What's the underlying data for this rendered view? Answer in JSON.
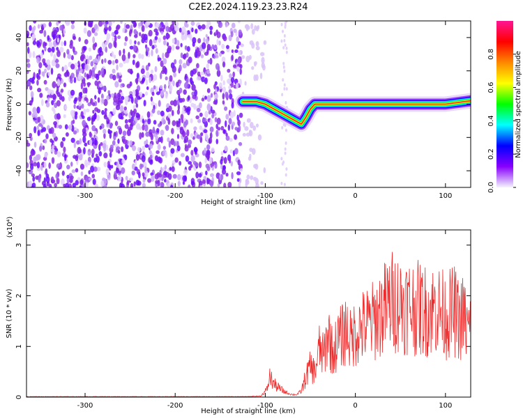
{
  "title": "C2E2.2024.119.23.23.R24",
  "colorbar": {
    "label": "Normalized spectral amplitude",
    "ticks": [
      "0.0",
      "0.2",
      "0.4",
      "0.6",
      "0.8"
    ],
    "tick_values": [
      0.0,
      0.2,
      0.4,
      0.6,
      0.8
    ],
    "range": [
      0,
      1
    ],
    "colors": [
      "#f4f4ff",
      "#8800ff",
      "#0000ff",
      "#00ffff",
      "#00ff00",
      "#ffff00",
      "#ff8800",
      "#ff0000",
      "#ff1493"
    ]
  },
  "chart_data": [
    {
      "type": "heatmap",
      "xlabel": "Height of straight line (km)",
      "ylabel": "Frequency (Hz)",
      "xlim": [
        -365,
        128
      ],
      "ylim": [
        -50,
        50
      ],
      "xticks": [
        "-300",
        "-200",
        "-100",
        "0",
        "100"
      ],
      "xtick_values": [
        -300,
        -200,
        -100,
        0,
        100
      ],
      "yticks": [
        "-40",
        "-20",
        "0",
        "20",
        "40"
      ],
      "ytick_values": [
        -40,
        -20,
        0,
        20,
        40
      ],
      "noise_region_x": [
        -365,
        -100
      ],
      "signal_ridge": [
        {
          "x": -125,
          "y": 1.5
        },
        {
          "x": -110,
          "y": 1.5
        },
        {
          "x": -100,
          "y": 0
        },
        {
          "x": -90,
          "y": -3
        },
        {
          "x": -80,
          "y": -6
        },
        {
          "x": -70,
          "y": -9
        },
        {
          "x": -60,
          "y": -12
        },
        {
          "x": -55,
          "y": -8
        },
        {
          "x": -50,
          "y": -3
        },
        {
          "x": -45,
          "y": 0
        },
        {
          "x": -30,
          "y": 0
        },
        {
          "x": 0,
          "y": 0
        },
        {
          "x": 50,
          "y": 0
        },
        {
          "x": 100,
          "y": 0
        },
        {
          "x": 128,
          "y": 2
        }
      ]
    },
    {
      "type": "line",
      "xlabel": "Height of straight line (km)",
      "ylabel": "SNR (10 * v/v)",
      "y_multiplier": "(x10⁴)",
      "xlim": [
        -365,
        128
      ],
      "ylim": [
        0,
        3.3
      ],
      "xticks": [
        "-300",
        "-200",
        "-100",
        "0",
        "100"
      ],
      "xtick_values": [
        -300,
        -200,
        -100,
        0,
        100
      ],
      "yticks": [
        "0",
        "1",
        "2",
        "3"
      ],
      "ytick_values": [
        0,
        1,
        2,
        3
      ],
      "color": "#ee2a2a",
      "series": [
        {
          "x": [
            -365,
            -300,
            -200,
            -120,
            -105,
            -98,
            -95,
            -90,
            -85,
            -80,
            -75,
            -70,
            -65,
            -60,
            -55,
            -50,
            -45,
            -40,
            -35,
            -30,
            -25,
            -20,
            -15,
            -10,
            -5,
            0,
            10,
            20,
            30,
            40,
            50,
            60,
            70,
            80,
            90,
            100,
            110,
            115,
            120,
            125,
            128
          ],
          "y": [
            0.01,
            0.01,
            0.01,
            0.01,
            0.02,
            0.15,
            0.4,
            0.25,
            0.18,
            0.12,
            0.08,
            0.05,
            0.05,
            0.12,
            0.4,
            0.6,
            0.5,
            0.95,
            0.8,
            1.3,
            0.85,
            1.1,
            1.2,
            1.35,
            1.1,
            1.3,
            1.4,
            1.5,
            1.7,
            1.9,
            1.85,
            1.8,
            1.75,
            1.7,
            1.75,
            1.6,
            1.7,
            1.5,
            1.6,
            1.3,
            1.4
          ]
        }
      ]
    }
  ]
}
